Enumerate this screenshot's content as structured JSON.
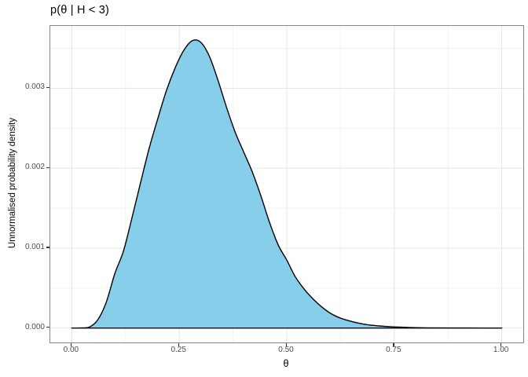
{
  "title": "p(θ | H < 3)",
  "chart_data": {
    "type": "area",
    "title": "p(θ | H < 3)",
    "xlabel": "θ",
    "ylabel": "Unnormalised probability density",
    "xlim": [
      0,
      1
    ],
    "ylim": [
      0,
      0.0036
    ],
    "x_tick_values": [
      0,
      0.25,
      0.5,
      0.75,
      1.0
    ],
    "x_tick_labels": [
      "0.00",
      "0.25",
      "0.50",
      "0.75",
      "1.00"
    ],
    "y_tick_values": [
      0,
      0.001,
      0.002,
      0.003
    ],
    "y_tick_labels": [
      "0.000",
      "0.001",
      "0.002",
      "0.003"
    ],
    "grid": true,
    "legend": false,
    "peak": {
      "x": 0.284,
      "y": 0.0036
    },
    "x": [
      0.0,
      0.02,
      0.04,
      0.06,
      0.08,
      0.1,
      0.12,
      0.14,
      0.16,
      0.18,
      0.2,
      0.22,
      0.24,
      0.26,
      0.28,
      0.3,
      0.32,
      0.34,
      0.36,
      0.38,
      0.4,
      0.42,
      0.44,
      0.46,
      0.48,
      0.5,
      0.52,
      0.54,
      0.56,
      0.58,
      0.6,
      0.62,
      0.64,
      0.66,
      0.68,
      0.7,
      0.72,
      0.74,
      0.76,
      0.78,
      0.8,
      0.84,
      0.88,
      0.92,
      0.96,
      1.0
    ],
    "y": [
      0.0,
      1e-06,
      1e-05,
      0.0001,
      0.00032,
      0.00068,
      0.00096,
      0.00138,
      0.00182,
      0.00225,
      0.00262,
      0.00297,
      0.00325,
      0.00347,
      0.003595,
      0.003575,
      0.0034,
      0.0031,
      0.00276,
      0.00245,
      0.0022,
      0.00195,
      0.00165,
      0.00132,
      0.00104,
      0.00085,
      0.00064,
      0.00049,
      0.00037,
      0.00027,
      0.00019,
      0.000135,
      9.8e-05,
      7e-05,
      4.8e-05,
      3.4e-05,
      2.4e-05,
      1.7e-05,
      1.2e-05,
      8e-06,
      5e-06,
      2e-06,
      1e-06,
      5e-07,
      2e-07,
      0.0
    ]
  },
  "colors": {
    "fill": "#87CEEB",
    "line": "#000000",
    "grid_major": "#e4e4e4",
    "grid_minor": "#f2f2f2",
    "panel_border": "#858585",
    "tick": "#333333",
    "tick_label": "#4d4d4d",
    "text": "#000000",
    "panel_bg": "#ffffff"
  }
}
